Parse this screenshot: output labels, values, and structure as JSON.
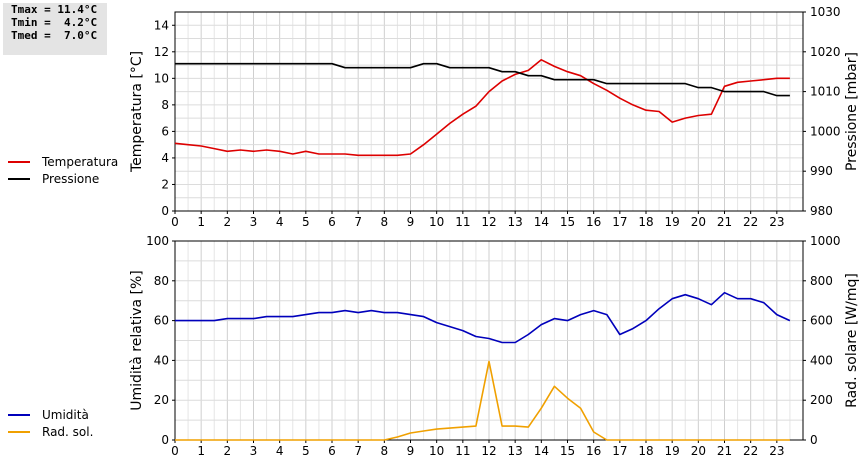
{
  "stats": {
    "tmax": "Tmax = 11.4°C",
    "tmin": "Tmin =  4.2°C",
    "tmed": "Tmed =  7.0°C"
  },
  "legends": {
    "top": [
      {
        "label": "Temperatura",
        "color": "#dd0000"
      },
      {
        "label": "Pressione",
        "color": "#000000"
      }
    ],
    "bottom": [
      {
        "label": "Umidità",
        "color": "#0000bb"
      },
      {
        "label": "Rad. sol.",
        "color": "#f0a000"
      }
    ]
  },
  "chart_data": [
    {
      "type": "line",
      "xlim": [
        0,
        24
      ],
      "x_ticks": [
        0,
        1,
        2,
        3,
        4,
        5,
        6,
        7,
        8,
        9,
        10,
        11,
        12,
        13,
        14,
        15,
        16,
        17,
        18,
        19,
        20,
        21,
        22,
        23
      ],
      "ylabel_left": "Temperatura [°C]",
      "ylim_left": [
        0,
        15
      ],
      "y_ticks_left": [
        0,
        2,
        4,
        6,
        8,
        10,
        12,
        14
      ],
      "ylabel_right": "Pressione [mbar]",
      "ylim_right": [
        980,
        1030
      ],
      "y_ticks_right": [
        980,
        990,
        1000,
        1010,
        1020,
        1030
      ],
      "grid": true,
      "series": [
        {
          "name": "Temperatura",
          "axis": "left",
          "color": "#dd0000",
          "x": [
            0,
            0.5,
            1,
            1.5,
            2,
            2.5,
            3,
            3.5,
            4,
            4.5,
            5,
            5.5,
            6,
            6.5,
            7,
            7.5,
            8,
            8.5,
            9,
            9.5,
            10,
            10.5,
            11,
            11.5,
            12,
            12.5,
            13,
            13.5,
            14,
            14.5,
            15,
            15.5,
            16,
            16.5,
            17,
            17.5,
            18,
            18.5,
            19,
            19.5,
            20,
            20.5,
            21,
            21.5,
            22,
            22.5,
            23,
            23.5
          ],
          "y": [
            5.1,
            5.0,
            4.9,
            4.7,
            4.5,
            4.6,
            4.5,
            4.6,
            4.5,
            4.3,
            4.5,
            4.3,
            4.3,
            4.3,
            4.2,
            4.2,
            4.2,
            4.2,
            4.3,
            5.0,
            5.8,
            6.6,
            7.3,
            7.9,
            9.0,
            9.8,
            10.3,
            10.6,
            11.4,
            10.9,
            10.5,
            10.2,
            9.6,
            9.1,
            8.5,
            8.0,
            7.6,
            7.5,
            6.7,
            7.0,
            7.2,
            7.3,
            9.4,
            9.7,
            9.8,
            9.9,
            10.0,
            10.0
          ]
        },
        {
          "name": "Pressione",
          "axis": "right",
          "color": "#000000",
          "x": [
            0,
            1,
            2,
            3,
            4,
            5,
            6,
            6.5,
            7,
            8,
            9,
            9.5,
            10,
            10.5,
            11,
            12,
            12.5,
            13,
            13.5,
            14,
            14.5,
            15,
            16,
            16.5,
            17,
            18,
            19,
            19.5,
            20,
            20.5,
            21,
            22,
            22.5,
            23,
            23.5
          ],
          "y": [
            1017,
            1017,
            1017,
            1017,
            1017,
            1017,
            1017,
            1016,
            1016,
            1016,
            1016,
            1017,
            1017,
            1016,
            1016,
            1016,
            1015,
            1015,
            1014,
            1014,
            1013,
            1013,
            1013,
            1012,
            1012,
            1012,
            1012,
            1012,
            1011,
            1011,
            1010,
            1010,
            1010,
            1009,
            1009
          ]
        }
      ]
    },
    {
      "type": "line",
      "xlim": [
        0,
        24
      ],
      "x_ticks": [
        0,
        1,
        2,
        3,
        4,
        5,
        6,
        7,
        8,
        9,
        10,
        11,
        12,
        13,
        14,
        15,
        16,
        17,
        18,
        19,
        20,
        21,
        22,
        23
      ],
      "ylabel_left": "Umidità relativa [%]",
      "ylim_left": [
        0,
        100
      ],
      "y_ticks_left": [
        0,
        20,
        40,
        60,
        80,
        100
      ],
      "ylabel_right": "Rad. solare [W/mq]",
      "ylim_right": [
        0,
        1000
      ],
      "y_ticks_right": [
        0,
        200,
        400,
        600,
        800,
        1000
      ],
      "grid": true,
      "series": [
        {
          "name": "Umidità",
          "axis": "left",
          "color": "#0000bb",
          "x": [
            0,
            0.5,
            1,
            1.5,
            2,
            2.5,
            3,
            3.5,
            4,
            4.5,
            5,
            5.5,
            6,
            6.5,
            7,
            7.5,
            8,
            8.5,
            9,
            9.5,
            10,
            10.5,
            11,
            11.5,
            12,
            12.5,
            13,
            13.5,
            14,
            14.5,
            15,
            15.5,
            16,
            16.5,
            17,
            17.5,
            18,
            18.5,
            19,
            19.5,
            20,
            20.5,
            21,
            21.5,
            22,
            22.5,
            23,
            23.5
          ],
          "y": [
            60,
            60,
            60,
            60,
            61,
            61,
            61,
            62,
            62,
            62,
            63,
            64,
            64,
            65,
            64,
            65,
            64,
            64,
            63,
            62,
            59,
            57,
            55,
            52,
            51,
            49,
            49,
            53,
            58,
            61,
            60,
            63,
            65,
            63,
            53,
            56,
            60,
            66,
            71,
            73,
            71,
            68,
            74,
            71,
            71,
            69,
            63,
            60
          ]
        },
        {
          "name": "Rad. sol.",
          "axis": "right",
          "color": "#f0a000",
          "x": [
            0,
            1,
            2,
            3,
            4,
            5,
            6,
            7,
            8,
            8.5,
            9,
            9.5,
            10,
            10.5,
            11,
            11.5,
            12,
            12.5,
            13,
            13.5,
            14,
            14.5,
            15,
            15.5,
            16,
            16.5,
            17,
            18,
            19,
            20,
            21,
            22,
            23,
            23.5
          ],
          "y": [
            0,
            0,
            0,
            0,
            0,
            0,
            0,
            0,
            0,
            15,
            35,
            45,
            55,
            60,
            65,
            70,
            395,
            70,
            70,
            65,
            160,
            270,
            210,
            160,
            40,
            0,
            0,
            0,
            0,
            0,
            0,
            0,
            0,
            0
          ]
        }
      ]
    }
  ]
}
